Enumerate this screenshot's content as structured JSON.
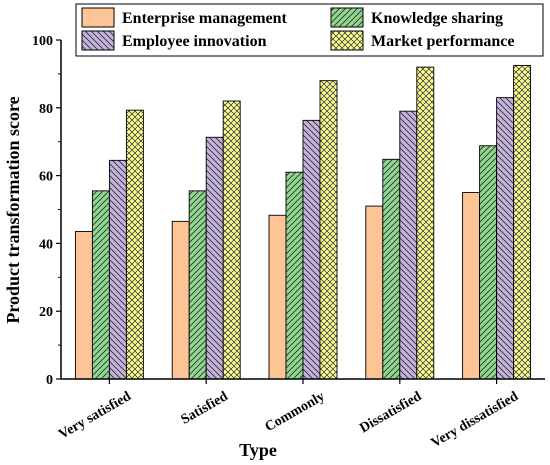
{
  "chart_data": {
    "type": "bar",
    "title": "",
    "xlabel": "Type",
    "ylabel": "Product transformation score",
    "ylim": [
      0,
      100
    ],
    "yticks": [
      0,
      20,
      40,
      60,
      80,
      100
    ],
    "categories": [
      "Very satisfied",
      "Satisfied",
      "Commonly",
      "Dissatisfied",
      "Very dissatisfied"
    ],
    "series": [
      {
        "name": "Enterprise management",
        "values": [
          43.5,
          46.5,
          48.3,
          51.0,
          55.0
        ],
        "color": "#fdc596",
        "pattern": "solid"
      },
      {
        "name": "Knowledge sharing",
        "values": [
          55.5,
          55.5,
          61.0,
          64.8,
          68.8
        ],
        "color": "#8fd68f",
        "pattern": "diagonal-forward"
      },
      {
        "name": "Employee innovation",
        "values": [
          64.5,
          71.3,
          76.3,
          79.0,
          83.0
        ],
        "color": "#c3b3dc",
        "pattern": "diagonal-back"
      },
      {
        "name": "Market performance",
        "values": [
          79.3,
          82.0,
          88.0,
          92.0,
          92.5
        ],
        "color": "#fcfc94",
        "pattern": "crosshatch"
      }
    ],
    "legend_position": "top",
    "grid": false
  }
}
